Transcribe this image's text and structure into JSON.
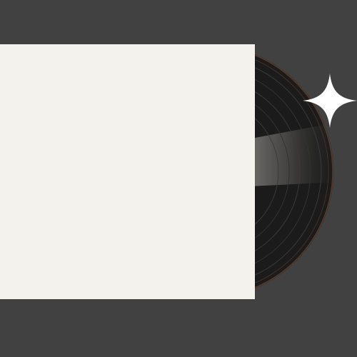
{
  "scene": {
    "background_color": "#414141",
    "sleeve_color": "#f4f2ed",
    "record_color": "#1b1b1b",
    "record_rim_color": "#5a3a2a",
    "groove_color": "#2f2f2f",
    "label_glow_color": "#c8c4bc",
    "warm_glow_color": "#8a3a30",
    "sparkle_color": "#ffffff",
    "icons": [
      "vinyl-record-icon",
      "sparkle-icon"
    ]
  }
}
